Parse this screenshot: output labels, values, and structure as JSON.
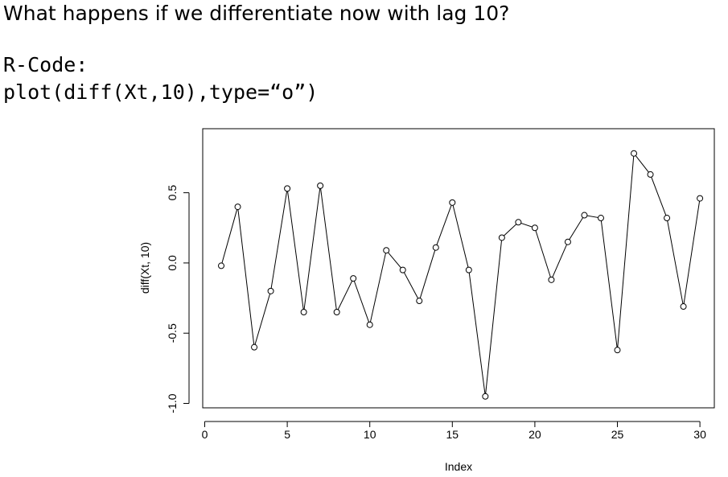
{
  "slide": {
    "question": "What happens if we differentiate now with lag 10?",
    "code_label": "R-Code:",
    "code_line": "plot(diff(Xt,10),type=“o”)"
  },
  "chart_data": {
    "type": "line",
    "markers": "open-circle",
    "xlabel": "Index",
    "ylabel": "diff(Xt, 10)",
    "xlim": [
      0,
      31
    ],
    "ylim": [
      -1.0,
      0.85
    ],
    "xticks": [
      0,
      5,
      10,
      15,
      20,
      25,
      30
    ],
    "yticks": [
      -1.0,
      -0.5,
      0.0,
      0.5
    ],
    "xtick_labels": [
      "0",
      "5",
      "10",
      "15",
      "20",
      "25",
      "30"
    ],
    "ytick_labels": [
      "-1.0",
      "-0.5",
      "0.0",
      "0.5"
    ],
    "x": [
      1,
      2,
      3,
      4,
      5,
      6,
      7,
      8,
      9,
      10,
      11,
      12,
      13,
      14,
      15,
      16,
      17,
      18,
      19,
      20,
      21,
      22,
      23,
      24,
      25,
      26,
      27,
      28,
      29,
      30
    ],
    "y": [
      -0.02,
      0.4,
      -0.6,
      -0.2,
      0.53,
      -0.35,
      0.55,
      -0.35,
      -0.11,
      -0.44,
      0.09,
      -0.05,
      -0.27,
      0.11,
      0.43,
      -0.05,
      -0.95,
      0.18,
      0.29,
      0.25,
      -0.12,
      0.15,
      0.34,
      0.32,
      -0.62,
      0.78,
      0.63,
      0.32,
      -0.31,
      0.46
    ],
    "grid": false,
    "colors": {
      "line": "#000000",
      "marker": "#000000"
    }
  }
}
